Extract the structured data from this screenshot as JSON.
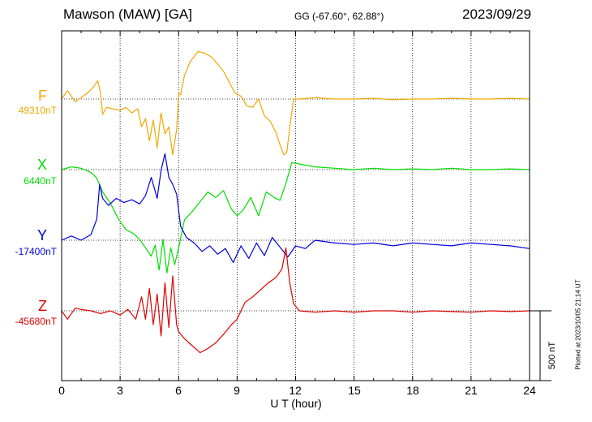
{
  "header": {
    "station": "Mawson (MAW)  [GA]",
    "coords": "GG (-67.60°,  62.88°)",
    "date": "2023/09/29"
  },
  "scale_label": "500 nT",
  "plotted_note": "Plotted at 2023/10/05 21:14 UT",
  "chart_data": {
    "type": "line",
    "xlabel": "U T (hour)",
    "xlim": [
      0,
      24
    ],
    "xticks": [
      0,
      3,
      6,
      9,
      12,
      15,
      18,
      21,
      24
    ],
    "xtick_labels": [
      "0",
      "3",
      "6",
      "9",
      "12",
      "15",
      "18",
      "21",
      "24"
    ],
    "grid": true,
    "scale_bar_nT": 500,
    "series": [
      {
        "name": "F",
        "baseline_label": "49310nT",
        "color": "#f0a800",
        "x": [
          0,
          0.3,
          0.7,
          1.0,
          1.3,
          1.6,
          1.85,
          2.0,
          2.1,
          2.3,
          2.6,
          3.0,
          3.3,
          3.6,
          3.9,
          4.1,
          4.3,
          4.5,
          4.7,
          4.9,
          5.1,
          5.3,
          5.5,
          5.7,
          5.9,
          6.0,
          6.1,
          6.3,
          6.6,
          7.0,
          7.3,
          7.7,
          8.0,
          8.3,
          8.6,
          8.9,
          9.2,
          9.5,
          9.8,
          10.1,
          10.4,
          10.7,
          11.0,
          11.2,
          11.4,
          11.55,
          11.7,
          11.9,
          12.2,
          13,
          14,
          15,
          16,
          17,
          18,
          19,
          20,
          21,
          22,
          23,
          24
        ],
        "values": [
          0,
          60,
          -20,
          10,
          40,
          80,
          130,
          40,
          -110,
          -60,
          -70,
          -80,
          -60,
          -100,
          -70,
          -200,
          -140,
          -300,
          -150,
          -350,
          -100,
          -250,
          -200,
          -400,
          -220,
          40,
          30,
          170,
          270,
          340,
          330,
          300,
          250,
          200,
          120,
          40,
          20,
          -50,
          -60,
          0,
          -120,
          -160,
          -240,
          -330,
          -400,
          -380,
          -200,
          0,
          0,
          10,
          0,
          0,
          5,
          -5,
          0,
          0,
          5,
          0,
          0,
          5,
          0
        ]
      },
      {
        "name": "X",
        "baseline_label": "6440nT",
        "color": "#00dd00",
        "x": [
          0,
          0.5,
          1.0,
          1.5,
          1.8,
          2.1,
          2.5,
          2.9,
          3.3,
          3.7,
          4.0,
          4.3,
          4.6,
          4.8,
          5.0,
          5.2,
          5.4,
          5.6,
          5.8,
          6.0,
          6.3,
          6.7,
          7.1,
          7.5,
          7.9,
          8.3,
          8.7,
          9.0,
          9.3,
          9.7,
          10.1,
          10.5,
          10.9,
          11.2,
          11.5,
          11.8,
          12.2,
          13,
          14,
          15,
          16,
          17,
          18,
          19,
          20,
          21,
          22,
          23,
          24
        ],
        "values": [
          0,
          20,
          10,
          -20,
          -60,
          -160,
          -240,
          -350,
          -430,
          -460,
          -500,
          -560,
          -620,
          -540,
          -720,
          -500,
          -740,
          -560,
          -680,
          -560,
          -360,
          -300,
          -230,
          -160,
          -200,
          -150,
          -280,
          -330,
          -290,
          -200,
          -330,
          -160,
          -200,
          -220,
          -100,
          50,
          40,
          20,
          10,
          0,
          10,
          0,
          5,
          0,
          10,
          0,
          0,
          5,
          0
        ]
      },
      {
        "name": "Y",
        "baseline_label": "-17400nT",
        "color": "#0000dd",
        "x": [
          0,
          0.5,
          1.0,
          1.5,
          1.8,
          1.95,
          2.1,
          2.4,
          2.8,
          3.2,
          3.6,
          4.0,
          4.3,
          4.6,
          4.9,
          5.1,
          5.3,
          5.5,
          5.7,
          5.9,
          6.1,
          6.4,
          6.8,
          7.2,
          7.6,
          8.0,
          8.4,
          8.8,
          9.2,
          9.6,
          10.0,
          10.4,
          10.8,
          11.2,
          11.6,
          12.0,
          12.5,
          13,
          14,
          15,
          16,
          17,
          18,
          19,
          20,
          21,
          22,
          23,
          24
        ],
        "values": [
          0,
          30,
          0,
          40,
          150,
          400,
          300,
          250,
          300,
          270,
          290,
          260,
          320,
          450,
          300,
          500,
          620,
          450,
          400,
          330,
          100,
          20,
          -20,
          -80,
          -40,
          -100,
          -60,
          -160,
          -40,
          -130,
          -20,
          -110,
          20,
          -50,
          -120,
          -40,
          -60,
          0,
          -20,
          -30,
          -20,
          -40,
          -20,
          -30,
          -40,
          -20,
          -30,
          -40,
          -60
        ]
      },
      {
        "name": "Z",
        "baseline_label": "-45680nT",
        "color": "#dd0000",
        "x": [
          0,
          0.3,
          0.7,
          1.0,
          1.5,
          2.0,
          2.5,
          3.0,
          3.4,
          3.8,
          4.1,
          4.3,
          4.5,
          4.7,
          4.9,
          5.1,
          5.3,
          5.5,
          5.7,
          5.9,
          6.0,
          6.3,
          6.7,
          7.1,
          7.5,
          7.9,
          8.3,
          8.7,
          9.0,
          9.4,
          9.8,
          10.2,
          10.6,
          11.0,
          11.3,
          11.5,
          11.7,
          11.9,
          12.2,
          13,
          14,
          15,
          16,
          17,
          18,
          19,
          20,
          21,
          22,
          23,
          24
        ],
        "values": [
          0,
          -60,
          20,
          10,
          0,
          -20,
          0,
          -30,
          10,
          -60,
          100,
          -60,
          160,
          -100,
          120,
          -180,
          200,
          -120,
          250,
          -100,
          -150,
          -200,
          -250,
          -300,
          -270,
          -230,
          -170,
          -100,
          -60,
          60,
          100,
          150,
          200,
          240,
          300,
          450,
          200,
          50,
          0,
          -10,
          0,
          -10,
          0,
          0,
          -10,
          0,
          -5,
          -10,
          0,
          -5,
          0
        ]
      }
    ]
  }
}
